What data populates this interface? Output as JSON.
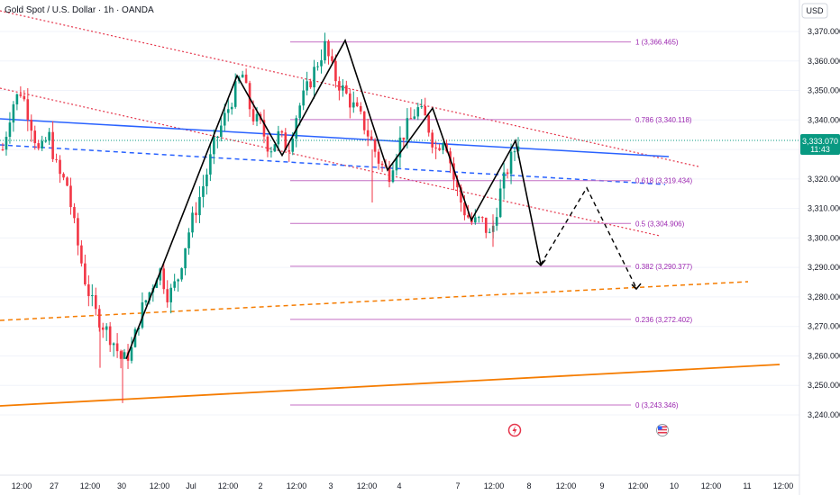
{
  "header": {
    "title": "Gold Spot / U.S. Dollar · 1h · OANDA",
    "currency_button": "USD"
  },
  "price_badge": {
    "price": "3,333.070",
    "countdown": "11:43",
    "color": "#089981"
  },
  "colors": {
    "up": "#089981",
    "down": "#f23645",
    "blue_trend": "#2962ff",
    "orange_trend": "#f57c00",
    "red_channel": "#e5354b",
    "fib": "#c46fc4",
    "path": "#000000"
  },
  "chart_data": {
    "type": "candlestick",
    "title": "Gold Spot / U.S. Dollar · 1h · OANDA",
    "ylim": [
      3232,
      3378
    ],
    "y_ticks": [
      3240,
      3250,
      3260,
      3270,
      3280,
      3290,
      3300,
      3310,
      3320,
      3330,
      3340,
      3350,
      3360,
      3370
    ],
    "y_tick_labels": [
      "3,240.000",
      "3,250.000",
      "3,260.000",
      "3,270.000",
      "3,280.000",
      "3,290.000",
      "3,300.000",
      "3,310.000",
      "3,320.000",
      "3,330.000",
      "3,340.000",
      "3,350.000",
      "3,360.000",
      "3,370.000"
    ],
    "x_tick_labels": [
      "12:00",
      "27",
      "12:00",
      "30",
      "12:00",
      "Jul",
      "12:00",
      "2",
      "12:00",
      "3",
      "12:00",
      "4",
      "7",
      "12:00",
      "8",
      "12:00",
      "9",
      "12:00",
      "10",
      "12:00",
      "11",
      "12:00"
    ],
    "current_price": 3333.07,
    "price_waypoints": [
      3330,
      3345,
      3350,
      3340,
      3328,
      3335,
      3322,
      3318,
      3300,
      3285,
      3275,
      3270,
      3265,
      3258,
      3262,
      3275,
      3282,
      3290,
      3280,
      3286,
      3300,
      3310,
      3320,
      3332,
      3340,
      3348,
      3356,
      3342,
      3338,
      3330,
      3335,
      3330,
      3343,
      3350,
      3358,
      3365,
      3355,
      3350,
      3345,
      3340,
      3333,
      3325,
      3322,
      3332,
      3338,
      3344,
      3340,
      3330,
      3335,
      3320,
      3310,
      3305,
      3306,
      3300,
      3315,
      3325,
      3333
    ],
    "fibonacci": [
      {
        "level": "1",
        "label": "1 (3,366.465)",
        "price": 3366.465
      },
      {
        "level": "0.786",
        "label": "0.786 (3,340.118)",
        "price": 3340.118
      },
      {
        "level": "0.618",
        "label": "0.618 (3,319.434)",
        "price": 3319.434
      },
      {
        "level": "0.5",
        "label": "0.5 (3,304.906)",
        "price": 3304.906
      },
      {
        "level": "0.382",
        "label": "0.382 (3,290.377)",
        "price": 3290.377
      },
      {
        "level": "0.236",
        "label": "0.236 (3,272.402)",
        "price": 3272.402
      },
      {
        "level": "0",
        "label": "0 (3,243.346)",
        "price": 3243.346
      }
    ],
    "annotation_path_prices": [
      3259,
      3355,
      3328,
      3367,
      3323,
      3344,
      3306,
      3333,
      3291,
      3317,
      3283
    ]
  }
}
